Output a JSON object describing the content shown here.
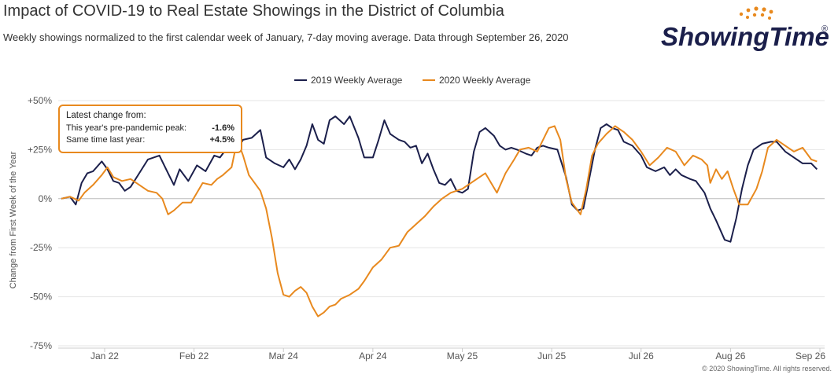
{
  "header": {
    "title": "Impact of COVID-19 to Real Estate Showings in the District of Columbia",
    "subtitle": "Weekly showings normalized to the first calendar week of January, 7-day moving average. Data through September 26, 2020",
    "logo_text": "ShowingTime",
    "logo_mark": "®"
  },
  "callout": {
    "heading": "Latest change from:",
    "rows": [
      {
        "label": "This year's pre-pandemic peak:",
        "value": "-1.6%"
      },
      {
        "label": "Same time last year:",
        "value": "+4.5%"
      }
    ]
  },
  "footer": {
    "copyright": "© 2020 ShowingTime. All rights reserved."
  },
  "colors": {
    "series_2019": "#1B1F4B",
    "series_2020": "#E8891E",
    "grid": "#E6E6E6",
    "zero_line": "#BBBBBB"
  },
  "chart_data": {
    "type": "line",
    "title": "Impact of COVID-19 to Real Estate Showings in the District of Columbia",
    "xlabel": "",
    "ylabel": "Change from First Week of the Year",
    "x_range": [
      "2020-01-07",
      "2020-09-26"
    ],
    "x_ticks": [
      {
        "date": "2020-01-22",
        "label": "Jan 22"
      },
      {
        "date": "2020-02-22",
        "label": "Feb 22"
      },
      {
        "date": "2020-03-24",
        "label": "Mar 24"
      },
      {
        "date": "2020-04-24",
        "label": "Apr 24"
      },
      {
        "date": "2020-05-25",
        "label": "May 25"
      },
      {
        "date": "2020-06-25",
        "label": "Jun 25"
      },
      {
        "date": "2020-07-26",
        "label": "Jul 26"
      },
      {
        "date": "2020-08-26",
        "label": "Aug 26"
      },
      {
        "date": "2020-09-26",
        "label": "Sep 26"
      }
    ],
    "ylim": [
      -75,
      50
    ],
    "y_ticks": [
      {
        "value": 50,
        "label": "+50%"
      },
      {
        "value": 25,
        "label": "+25%"
      },
      {
        "value": 0,
        "label": "0%"
      },
      {
        "value": -25,
        "label": "-25%"
      },
      {
        "value": -50,
        "label": "-50%"
      },
      {
        "value": -75,
        "label": "-75%"
      }
    ],
    "grid": true,
    "legend_position": "top-center",
    "series": [
      {
        "name": "2019 Weekly Average",
        "color": "#1B1F4B",
        "points": [
          [
            "2020-01-07",
            0
          ],
          [
            "2020-01-10",
            1
          ],
          [
            "2020-01-12",
            -3
          ],
          [
            "2020-01-14",
            8
          ],
          [
            "2020-01-16",
            13
          ],
          [
            "2020-01-18",
            14
          ],
          [
            "2020-01-21",
            19
          ],
          [
            "2020-01-23",
            15
          ],
          [
            "2020-01-25",
            9
          ],
          [
            "2020-01-27",
            8
          ],
          [
            "2020-01-29",
            4
          ],
          [
            "2020-01-31",
            6
          ],
          [
            "2020-02-03",
            13
          ],
          [
            "2020-02-06",
            20
          ],
          [
            "2020-02-10",
            22
          ],
          [
            "2020-02-13",
            13
          ],
          [
            "2020-02-15",
            7
          ],
          [
            "2020-02-17",
            15
          ],
          [
            "2020-02-20",
            9
          ],
          [
            "2020-02-23",
            17
          ],
          [
            "2020-02-26",
            14
          ],
          [
            "2020-02-29",
            22
          ],
          [
            "2020-03-02",
            21
          ],
          [
            "2020-03-05",
            27
          ],
          [
            "2020-03-08",
            25
          ],
          [
            "2020-03-10",
            30
          ],
          [
            "2020-03-13",
            31
          ],
          [
            "2020-03-16",
            35
          ],
          [
            "2020-03-18",
            21
          ],
          [
            "2020-03-21",
            18
          ],
          [
            "2020-03-24",
            16
          ],
          [
            "2020-03-26",
            20
          ],
          [
            "2020-03-28",
            15
          ],
          [
            "2020-03-30",
            20
          ],
          [
            "2020-04-01",
            27
          ],
          [
            "2020-04-03",
            38
          ],
          [
            "2020-04-05",
            30
          ],
          [
            "2020-04-07",
            28
          ],
          [
            "2020-04-09",
            40
          ],
          [
            "2020-04-11",
            42
          ],
          [
            "2020-04-14",
            38
          ],
          [
            "2020-04-16",
            42
          ],
          [
            "2020-04-19",
            31
          ],
          [
            "2020-04-21",
            21
          ],
          [
            "2020-04-24",
            21
          ],
          [
            "2020-04-26",
            30
          ],
          [
            "2020-04-28",
            40
          ],
          [
            "2020-04-30",
            33
          ],
          [
            "2020-05-03",
            30
          ],
          [
            "2020-05-05",
            29
          ],
          [
            "2020-05-07",
            26
          ],
          [
            "2020-05-09",
            27
          ],
          [
            "2020-05-11",
            18
          ],
          [
            "2020-05-13",
            23
          ],
          [
            "2020-05-15",
            15
          ],
          [
            "2020-05-17",
            8
          ],
          [
            "2020-05-19",
            7
          ],
          [
            "2020-05-21",
            10
          ],
          [
            "2020-05-23",
            4
          ],
          [
            "2020-05-25",
            3
          ],
          [
            "2020-05-27",
            5
          ],
          [
            "2020-05-29",
            24
          ],
          [
            "2020-05-31",
            34
          ],
          [
            "2020-06-02",
            36
          ],
          [
            "2020-06-05",
            32
          ],
          [
            "2020-06-07",
            27
          ],
          [
            "2020-06-09",
            25
          ],
          [
            "2020-06-11",
            26
          ],
          [
            "2020-06-13",
            25
          ],
          [
            "2020-06-16",
            23
          ],
          [
            "2020-06-18",
            22
          ],
          [
            "2020-06-20",
            26
          ],
          [
            "2020-06-22",
            27
          ],
          [
            "2020-06-24",
            26
          ],
          [
            "2020-06-27",
            25
          ],
          [
            "2020-06-30",
            11
          ],
          [
            "2020-07-02",
            -3
          ],
          [
            "2020-07-04",
            -6
          ],
          [
            "2020-07-06",
            -5
          ],
          [
            "2020-07-08",
            10
          ],
          [
            "2020-07-10",
            25
          ],
          [
            "2020-07-12",
            36
          ],
          [
            "2020-07-14",
            38
          ],
          [
            "2020-07-16",
            36
          ],
          [
            "2020-07-18",
            35
          ],
          [
            "2020-07-20",
            29
          ],
          [
            "2020-07-23",
            27
          ],
          [
            "2020-07-26",
            22
          ],
          [
            "2020-07-28",
            16
          ],
          [
            "2020-07-31",
            14
          ],
          [
            "2020-08-03",
            16
          ],
          [
            "2020-08-05",
            12
          ],
          [
            "2020-08-07",
            15
          ],
          [
            "2020-08-09",
            12
          ],
          [
            "2020-08-12",
            10
          ],
          [
            "2020-08-14",
            9
          ],
          [
            "2020-08-17",
            3
          ],
          [
            "2020-08-19",
            -5
          ],
          [
            "2020-08-21",
            -11
          ],
          [
            "2020-08-24",
            -21
          ],
          [
            "2020-08-26",
            -22
          ],
          [
            "2020-08-28",
            -10
          ],
          [
            "2020-08-30",
            5
          ],
          [
            "2020-09-01",
            17
          ],
          [
            "2020-09-03",
            25
          ],
          [
            "2020-09-06",
            28
          ],
          [
            "2020-09-09",
            29
          ],
          [
            "2020-09-11",
            29
          ],
          [
            "2020-09-14",
            24
          ],
          [
            "2020-09-17",
            21
          ],
          [
            "2020-09-20",
            18
          ],
          [
            "2020-09-23",
            18
          ],
          [
            "2020-09-25",
            15
          ]
        ]
      },
      {
        "name": "2020 Weekly Average",
        "color": "#E8891E",
        "points": [
          [
            "2020-01-07",
            0
          ],
          [
            "2020-01-10",
            1
          ],
          [
            "2020-01-13",
            -1
          ],
          [
            "2020-01-15",
            3
          ],
          [
            "2020-01-18",
            7
          ],
          [
            "2020-01-21",
            12
          ],
          [
            "2020-01-23",
            16
          ],
          [
            "2020-01-25",
            11
          ],
          [
            "2020-01-28",
            9
          ],
          [
            "2020-01-31",
            10
          ],
          [
            "2020-02-03",
            7
          ],
          [
            "2020-02-06",
            4
          ],
          [
            "2020-02-09",
            3
          ],
          [
            "2020-02-11",
            0
          ],
          [
            "2020-02-13",
            -8
          ],
          [
            "2020-02-15",
            -6
          ],
          [
            "2020-02-18",
            -2
          ],
          [
            "2020-02-21",
            -2
          ],
          [
            "2020-02-23",
            3
          ],
          [
            "2020-02-25",
            8
          ],
          [
            "2020-02-28",
            7
          ],
          [
            "2020-03-01",
            10
          ],
          [
            "2020-03-03",
            12
          ],
          [
            "2020-03-06",
            16
          ],
          [
            "2020-03-08",
            30
          ],
          [
            "2020-03-10",
            22
          ],
          [
            "2020-03-12",
            12
          ],
          [
            "2020-03-14",
            8
          ],
          [
            "2020-03-16",
            4
          ],
          [
            "2020-03-18",
            -5
          ],
          [
            "2020-03-20",
            -20
          ],
          [
            "2020-03-22",
            -38
          ],
          [
            "2020-03-24",
            -49
          ],
          [
            "2020-03-26",
            -50
          ],
          [
            "2020-03-28",
            -47
          ],
          [
            "2020-03-30",
            -45
          ],
          [
            "2020-04-01",
            -48
          ],
          [
            "2020-04-03",
            -55
          ],
          [
            "2020-04-05",
            -60
          ],
          [
            "2020-04-07",
            -58
          ],
          [
            "2020-04-09",
            -55
          ],
          [
            "2020-04-11",
            -54
          ],
          [
            "2020-04-13",
            -51
          ],
          [
            "2020-04-16",
            -49
          ],
          [
            "2020-04-19",
            -46
          ],
          [
            "2020-04-21",
            -42
          ],
          [
            "2020-04-24",
            -35
          ],
          [
            "2020-04-27",
            -31
          ],
          [
            "2020-04-30",
            -25
          ],
          [
            "2020-05-03",
            -24
          ],
          [
            "2020-05-06",
            -17
          ],
          [
            "2020-05-09",
            -13
          ],
          [
            "2020-05-12",
            -9
          ],
          [
            "2020-05-15",
            -4
          ],
          [
            "2020-05-18",
            0
          ],
          [
            "2020-05-21",
            3
          ],
          [
            "2020-05-25",
            5
          ],
          [
            "2020-05-29",
            9
          ],
          [
            "2020-06-02",
            13
          ],
          [
            "2020-06-06",
            3
          ],
          [
            "2020-06-09",
            13
          ],
          [
            "2020-06-12",
            20
          ],
          [
            "2020-06-14",
            25
          ],
          [
            "2020-06-17",
            26
          ],
          [
            "2020-06-20",
            24
          ],
          [
            "2020-06-24",
            36
          ],
          [
            "2020-06-26",
            37
          ],
          [
            "2020-06-28",
            30
          ],
          [
            "2020-06-30",
            10
          ],
          [
            "2020-07-02",
            -2
          ],
          [
            "2020-07-05",
            -8
          ],
          [
            "2020-07-07",
            5
          ],
          [
            "2020-07-09",
            22
          ],
          [
            "2020-07-11",
            28
          ],
          [
            "2020-07-14",
            33
          ],
          [
            "2020-07-17",
            37
          ],
          [
            "2020-07-20",
            34
          ],
          [
            "2020-07-23",
            30
          ],
          [
            "2020-07-26",
            24
          ],
          [
            "2020-07-29",
            17
          ],
          [
            "2020-08-01",
            21
          ],
          [
            "2020-08-04",
            26
          ],
          [
            "2020-08-07",
            24
          ],
          [
            "2020-08-10",
            17
          ],
          [
            "2020-08-13",
            22
          ],
          [
            "2020-08-16",
            20
          ],
          [
            "2020-08-18",
            17
          ],
          [
            "2020-08-19",
            8
          ],
          [
            "2020-08-21",
            15
          ],
          [
            "2020-08-23",
            10
          ],
          [
            "2020-08-25",
            14
          ],
          [
            "2020-08-27",
            5
          ],
          [
            "2020-08-29",
            -3
          ],
          [
            "2020-09-01",
            -3
          ],
          [
            "2020-09-04",
            5
          ],
          [
            "2020-09-06",
            14
          ],
          [
            "2020-09-08",
            26
          ],
          [
            "2020-09-11",
            30
          ],
          [
            "2020-09-14",
            27
          ],
          [
            "2020-09-17",
            24
          ],
          [
            "2020-09-20",
            26
          ],
          [
            "2020-09-23",
            20
          ],
          [
            "2020-09-25",
            19
          ]
        ]
      }
    ]
  }
}
